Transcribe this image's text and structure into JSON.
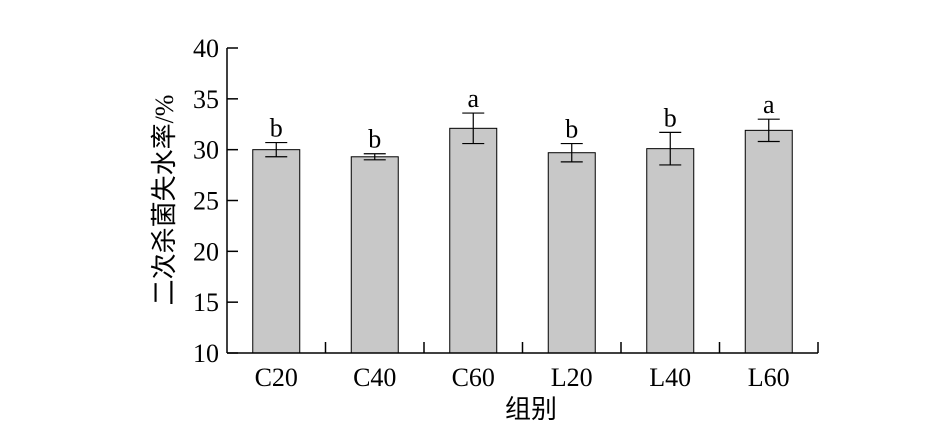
{
  "chart_data": {
    "type": "bar",
    "categories": [
      "C20",
      "C40",
      "C60",
      "L20",
      "L40",
      "L60"
    ],
    "values": [
      30.0,
      29.3,
      32.1,
      29.7,
      30.1,
      31.9
    ],
    "errors": [
      0.7,
      0.3,
      1.5,
      0.9,
      1.6,
      1.1
    ],
    "significance": [
      "b",
      "b",
      "a",
      "b",
      "b",
      "a"
    ],
    "xlabel": "组别",
    "ylabel": "二次杀菌失水率/%",
    "ylim": [
      10,
      40
    ],
    "yticks": [
      10,
      15,
      20,
      25,
      30,
      35,
      40
    ],
    "grid": false,
    "bar_color": "#c8c8c8",
    "edge_color": "#000000"
  }
}
